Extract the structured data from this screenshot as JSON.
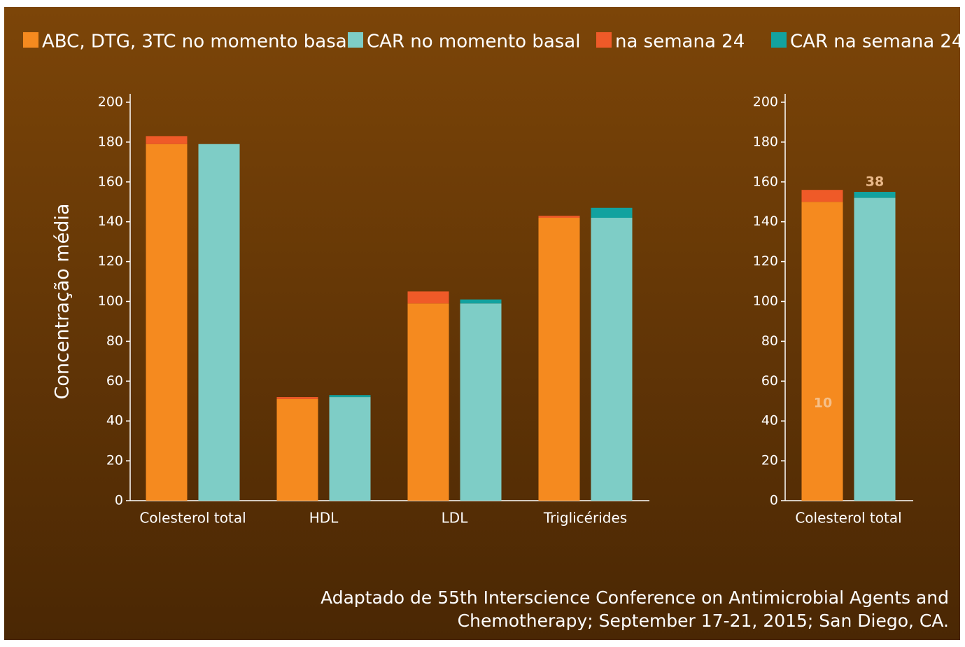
{
  "chart_data": [
    {
      "type": "bar",
      "ylabel": "Concentração média",
      "categories": [
        "Colesterol total",
        "HDL",
        "LDL",
        "Triglicérides"
      ],
      "series": [
        {
          "name": "ABC, DTG, 3TC no momento basal",
          "color": "#f58a1f",
          "values": [
            179,
            51,
            99,
            142
          ]
        },
        {
          "name": "CAR no momento basal",
          "color": "#7ecdc6",
          "values": [
            179,
            52,
            99,
            142
          ]
        },
        {
          "name": "na semana 24",
          "color": "#ef5a28",
          "values": [
            4,
            1,
            6,
            1
          ]
        },
        {
          "name": "CAR na semana 24",
          "color": "#12a29f",
          "values": [
            0,
            1,
            2,
            5
          ]
        }
      ],
      "ylim": [
        0,
        200
      ],
      "yticks": [
        0,
        20,
        40,
        60,
        80,
        100,
        120,
        140,
        160,
        180,
        200
      ]
    },
    {
      "type": "bar",
      "categories": [
        "Colesterol total"
      ],
      "series": [
        {
          "values": [
            150
          ]
        },
        {
          "values": [
            152
          ]
        },
        {
          "values": [
            6
          ]
        },
        {
          "values": [
            3
          ]
        }
      ],
      "annotations": [
        "10",
        "38"
      ],
      "ylim": [
        0,
        200
      ],
      "yticks": [
        0,
        20,
        40,
        60,
        80,
        100,
        120,
        140,
        160,
        180,
        200
      ]
    }
  ],
  "source": [
    "Adaptado de 55th Interscience Conference on Antimicrobial Agents and",
    "Chemotherapy; September 17-21, 2015; San Diego, CA."
  ]
}
